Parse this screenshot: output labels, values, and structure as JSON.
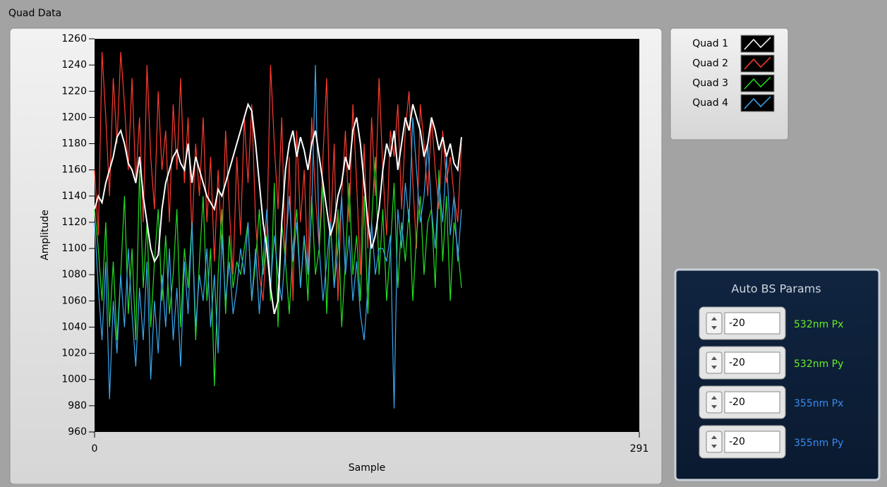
{
  "panel_label": "Quad Data",
  "chart_data": {
    "type": "line",
    "xlabel": "Sample",
    "ylabel": "Amplitude",
    "xlim": [
      0,
      291
    ],
    "xticks": [
      0,
      291
    ],
    "ylim": [
      960,
      1260
    ],
    "yticks": [
      960,
      980,
      1000,
      1020,
      1040,
      1060,
      1080,
      1100,
      1120,
      1140,
      1160,
      1180,
      1200,
      1220,
      1240,
      1260
    ],
    "legend": "outside-right",
    "x": [
      0,
      2,
      4,
      6,
      8,
      10,
      12,
      14,
      16,
      18,
      20,
      22,
      24,
      26,
      28,
      30,
      32,
      34,
      36,
      38,
      40,
      42,
      44,
      46,
      48,
      50,
      52,
      54,
      56,
      58,
      60,
      62,
      64,
      66,
      68,
      70,
      72,
      74,
      76,
      78,
      80,
      82,
      84,
      86,
      88,
      90,
      92,
      94,
      96,
      98,
      100,
      102,
      104,
      106,
      108,
      110,
      112,
      114,
      116,
      118,
      120,
      122,
      124,
      126,
      128,
      130,
      132,
      134,
      136,
      138,
      140,
      142,
      144,
      146,
      148,
      150,
      152,
      154,
      156,
      158,
      160,
      162,
      164,
      166,
      168,
      170,
      172,
      174,
      176,
      178,
      180,
      182,
      184,
      186,
      188,
      190,
      192,
      194,
      196
    ],
    "series": [
      {
        "name": "Quad 1",
        "color": "#ffffff",
        "values": [
          1130,
          1140,
          1135,
          1150,
          1160,
          1170,
          1185,
          1190,
          1180,
          1165,
          1160,
          1150,
          1170,
          1140,
          1120,
          1100,
          1090,
          1095,
          1130,
          1150,
          1160,
          1170,
          1175,
          1165,
          1160,
          1180,
          1150,
          1170,
          1160,
          1150,
          1140,
          1135,
          1130,
          1145,
          1140,
          1150,
          1160,
          1170,
          1180,
          1190,
          1200,
          1210,
          1205,
          1180,
          1150,
          1120,
          1100,
          1070,
          1050,
          1060,
          1120,
          1160,
          1180,
          1190,
          1170,
          1185,
          1175,
          1160,
          1180,
          1190,
          1170,
          1150,
          1130,
          1110,
          1120,
          1140,
          1150,
          1170,
          1160,
          1190,
          1200,
          1180,
          1150,
          1120,
          1100,
          1110,
          1130,
          1160,
          1180,
          1170,
          1190,
          1160,
          1180,
          1200,
          1190,
          1210,
          1200,
          1190,
          1170,
          1180,
          1200,
          1190,
          1175,
          1185,
          1170,
          1180,
          1165,
          1160,
          1185
        ]
      },
      {
        "name": "Quad 2",
        "color": "#ff3b30",
        "values": [
          1160,
          1110,
          1250,
          1200,
          1140,
          1230,
          1180,
          1250,
          1210,
          1160,
          1230,
          1150,
          1200,
          1120,
          1240,
          1170,
          1130,
          1220,
          1160,
          1190,
          1120,
          1210,
          1160,
          1230,
          1150,
          1200,
          1110,
          1180,
          1140,
          1200,
          1120,
          1170,
          1090,
          1160,
          1100,
          1190,
          1130,
          1080,
          1170,
          1110,
          1200,
          1150,
          1210,
          1120,
          1080,
          1060,
          1110,
          1240,
          1180,
          1130,
          1200,
          1090,
          1170,
          1060,
          1190,
          1120,
          1160,
          1080,
          1200,
          1140,
          1100,
          1170,
          1230,
          1110,
          1180,
          1060,
          1140,
          1190,
          1120,
          1210,
          1150,
          1080,
          1180,
          1100,
          1200,
          1140,
          1230,
          1160,
          1110,
          1190,
          1170,
          1210,
          1130,
          1190,
          1220,
          1150,
          1100,
          1210,
          1180,
          1140,
          1200,
          1160,
          1130,
          1190,
          1150,
          1170,
          1140,
          1120,
          1180
        ]
      },
      {
        "name": "Quad 3",
        "color": "#22e022",
        "values": [
          1130,
          1100,
          1060,
          1120,
          1040,
          1090,
          1030,
          1080,
          1140,
          1050,
          1100,
          1030,
          1160,
          1070,
          1120,
          1040,
          1090,
          1130,
          1060,
          1110,
          1050,
          1080,
          1130,
          1040,
          1100,
          1070,
          1120,
          1030,
          1090,
          1140,
          1060,
          1100,
          995,
          1080,
          1130,
          1050,
          1110,
          1070,
          1090,
          1080,
          1100,
          1120,
          1060,
          1090,
          1130,
          1080,
          1110,
          1060,
          1150,
          1040,
          1120,
          1090,
          1050,
          1100,
          1130,
          1070,
          1110,
          1060,
          1140,
          1080,
          1100,
          1150,
          1050,
          1120,
          1070,
          1130,
          1040,
          1090,
          1150,
          1080,
          1110,
          1060,
          1140,
          1050,
          1120,
          1170,
          1080,
          1130,
          1060,
          1100,
          1150,
          1070,
          1120,
          1090,
          1130,
          1060,
          1110,
          1140,
          1080,
          1120,
          1130,
          1070,
          1160,
          1090,
          1140,
          1060,
          1120,
          1100,
          1070
        ]
      },
      {
        "name": "Quad 4",
        "color": "#3aa8f0",
        "values": [
          1120,
          1070,
          1030,
          1090,
          985,
          1060,
          1020,
          1080,
          1040,
          1100,
          1050,
          1010,
          1070,
          1030,
          1090,
          1000,
          1060,
          1020,
          1080,
          1040,
          1100,
          1030,
          1070,
          1010,
          1090,
          1050,
          1120,
          1040,
          1080,
          1060,
          1100,
          1040,
          1080,
          1020,
          1110,
          1060,
          1090,
          1050,
          1070,
          1100,
          1080,
          1120,
          1060,
          1100,
          1050,
          1090,
          1130,
          1070,
          1110,
          1080,
          1060,
          1100,
          1140,
          1090,
          1120,
          1070,
          1110,
          1080,
          1130,
          1240,
          1100,
          1060,
          1090,
          1120,
          1070,
          1100,
          1140,
          1080,
          1110,
          1060,
          1090,
          1050,
          1030,
          1070,
          1120,
          1080,
          1100,
          1100,
          1090,
          1110,
          978,
          1130,
          1100,
          1150,
          1120,
          1200,
          1160,
          1120,
          1140,
          1180,
          1130,
          1100,
          1150,
          1120,
          1170,
          1110,
          1140,
          1090,
          1130
        ]
      }
    ]
  },
  "params": {
    "title": "Auto BS Params",
    "rows": [
      {
        "value": -20,
        "label": "532nm Px",
        "color": "#66ee22"
      },
      {
        "value": -20,
        "label": "532nm Py",
        "color": "#66ee22"
      },
      {
        "value": -20,
        "label": "355nm Px",
        "color": "#3a8cf0"
      },
      {
        "value": -20,
        "label": "355nm Py",
        "color": "#3a8cf0"
      }
    ]
  }
}
